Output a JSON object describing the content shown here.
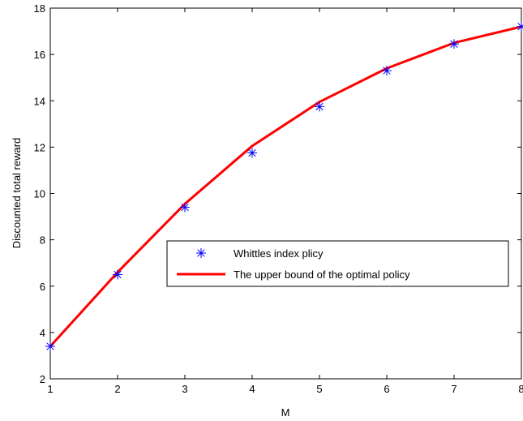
{
  "chart_data": {
    "type": "line",
    "title": "",
    "xlabel": "M",
    "ylabel": "Discounted total reward",
    "xlim": [
      1,
      8
    ],
    "ylim": [
      2,
      18
    ],
    "xticks": [
      1,
      2,
      3,
      4,
      5,
      6,
      7,
      8
    ],
    "yticks": [
      2,
      4,
      6,
      8,
      10,
      12,
      14,
      16,
      18
    ],
    "grid": false,
    "legend_placement": "center-right",
    "series": [
      {
        "name": "Whittles index plicy",
        "style": "markers",
        "marker": "asterisk",
        "color": "#0000ff",
        "x": [
          1,
          2,
          3,
          4,
          5,
          6,
          7,
          8
        ],
        "values": [
          3.4,
          6.5,
          9.4,
          11.75,
          13.75,
          15.3,
          16.45,
          17.2
        ]
      },
      {
        "name": "The upper bound of the optimal policy",
        "style": "line",
        "color": "#ff0000",
        "x": [
          1,
          2,
          3,
          4,
          5,
          6,
          7,
          8
        ],
        "values": [
          3.4,
          6.6,
          9.55,
          12.05,
          13.95,
          15.4,
          16.5,
          17.2
        ]
      }
    ]
  }
}
